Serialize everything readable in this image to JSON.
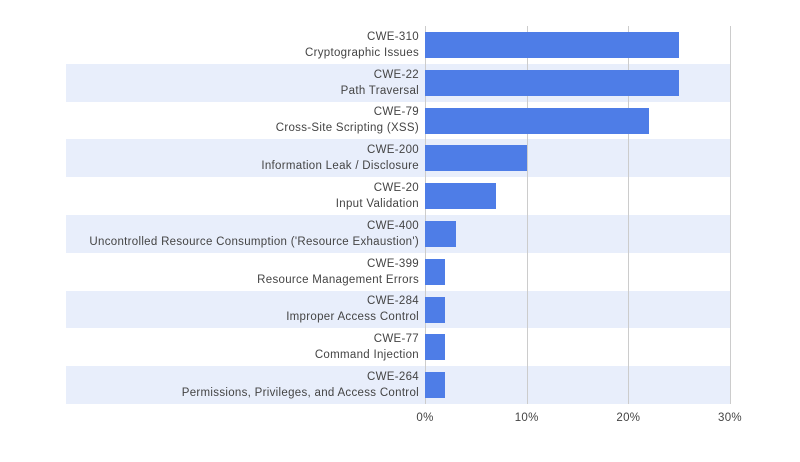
{
  "chart_data": {
    "type": "bar",
    "orientation": "horizontal",
    "title": "",
    "xlabel": "",
    "ylabel": "",
    "xlim": [
      0,
      30
    ],
    "grid": true,
    "legend": "none",
    "x_ticks": [
      {
        "value": 0,
        "label": "0%"
      },
      {
        "value": 10,
        "label": "10%"
      },
      {
        "value": 20,
        "label": "20%"
      },
      {
        "value": 30,
        "label": "30%"
      }
    ],
    "rows": [
      {
        "code": "CWE-310",
        "label": "Cryptographic Issues",
        "value": 25
      },
      {
        "code": "CWE-22",
        "label": "Path Traversal",
        "value": 25
      },
      {
        "code": "CWE-79",
        "label": "Cross-Site Scripting (XSS)",
        "value": 22
      },
      {
        "code": "CWE-200",
        "label": "Information Leak / Disclosure",
        "value": 10
      },
      {
        "code": "CWE-20",
        "label": "Input Validation",
        "value": 7
      },
      {
        "code": "CWE-400",
        "label": "Uncontrolled Resource Consumption ('Resource Exhaustion')",
        "value": 3
      },
      {
        "code": "CWE-399",
        "label": "Resource Management Errors",
        "value": 2
      },
      {
        "code": "CWE-284",
        "label": "Improper Access Control",
        "value": 2
      },
      {
        "code": "CWE-77",
        "label": "Command Injection",
        "value": 2
      },
      {
        "code": "CWE-264",
        "label": "Permissions, Privileges, and Access Control",
        "value": 2
      }
    ],
    "colors": {
      "bar": "#4e7de7",
      "band": "#e8eefb",
      "grid": "#cccccc",
      "baseline": "#cccccc",
      "text": "#444444"
    }
  }
}
